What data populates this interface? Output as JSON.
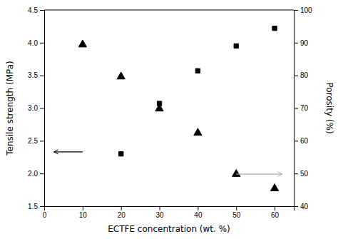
{
  "chart_data": {
    "type": "scatter",
    "x_label": "ECTFE concentration (wt. %)",
    "y_label": "Tensile strength (MPa)",
    "y2_label": "Porosity (%)",
    "series": [
      {
        "x": [
          20,
          30,
          40,
          50,
          60
        ],
        "values": [
          2.3,
          3.07,
          3.57,
          3.95,
          4.22
        ],
        "color": "#000000",
        "marker": "square"
      },
      {
        "x": [
          10,
          20,
          30,
          40,
          50,
          60
        ],
        "values": [
          3.97,
          3.48,
          2.99,
          2.62,
          1.99,
          1.77
        ],
        "color": "#000000",
        "marker": "triangle"
      }
    ],
    "xlim": [
      0,
      65
    ],
    "xticks": [
      0,
      10,
      20,
      30,
      40,
      50,
      60
    ],
    "ylim": [
      1.5,
      4.5
    ],
    "yticks": [
      1.5,
      {
        "value": 2.0,
        "label": "2.0"
      },
      2.5,
      {
        "value": 3.0,
        "label": "3.0"
      },
      3.5,
      {
        "value": 4.0,
        "label": "4.0"
      },
      4.5
    ],
    "y2lim": [
      40,
      100
    ],
    "y2ticks": [
      40,
      50,
      60,
      70,
      80,
      90,
      100
    ],
    "annotations": [
      {
        "type": "arrow",
        "x_start": 10,
        "x_end": 2.5,
        "y": 2.33,
        "color": "#000000"
      },
      {
        "type": "arrow",
        "x_start": 50,
        "x_end": 62,
        "y": 1.99,
        "color": "#aaaaaa"
      }
    ],
    "grid": false
  }
}
